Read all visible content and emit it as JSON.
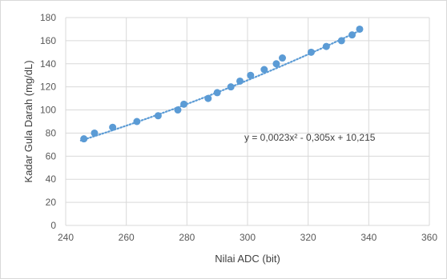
{
  "chart_data": {
    "type": "scatter",
    "title": "",
    "xlabel": "Nilai ADC (bit)",
    "ylabel": "Kadar Gula Darah (mg/dL)",
    "xlim": [
      240,
      360
    ],
    "ylim": [
      0,
      180
    ],
    "x_ticks": [
      240,
      260,
      280,
      300,
      320,
      340,
      360
    ],
    "y_ticks": [
      0,
      20,
      40,
      60,
      80,
      100,
      120,
      140,
      160,
      180
    ],
    "grid": true,
    "series": [
      {
        "points": [
          {
            "x": 246,
            "y": 75
          },
          {
            "x": 249.5,
            "y": 80
          },
          {
            "x": 255.5,
            "y": 85
          },
          {
            "x": 263.5,
            "y": 90
          },
          {
            "x": 270.5,
            "y": 95
          },
          {
            "x": 277,
            "y": 100
          },
          {
            "x": 279,
            "y": 105
          },
          {
            "x": 287,
            "y": 110
          },
          {
            "x": 290,
            "y": 115
          },
          {
            "x": 294.5,
            "y": 120
          },
          {
            "x": 297.5,
            "y": 125
          },
          {
            "x": 301,
            "y": 130
          },
          {
            "x": 305.5,
            "y": 135
          },
          {
            "x": 309.5,
            "y": 140
          },
          {
            "x": 311.5,
            "y": 145
          },
          {
            "x": 321,
            "y": 150
          },
          {
            "x": 326,
            "y": 155
          },
          {
            "x": 331,
            "y": 160
          },
          {
            "x": 334.5,
            "y": 165
          },
          {
            "x": 337,
            "y": 170
          }
        ],
        "color": "#5b9bd5"
      }
    ],
    "trendline": {
      "type": "polynomial",
      "order": 2,
      "coefficients": {
        "a": 0.0023,
        "b": -0.305,
        "c": 10.215
      },
      "x_range": [
        245,
        338
      ],
      "equation_label": "y = 0,0023x² - 0,305x + 10,215",
      "color": "#5b9bd5",
      "style": "dotted"
    },
    "gridline_color": "#d9d9d9"
  }
}
